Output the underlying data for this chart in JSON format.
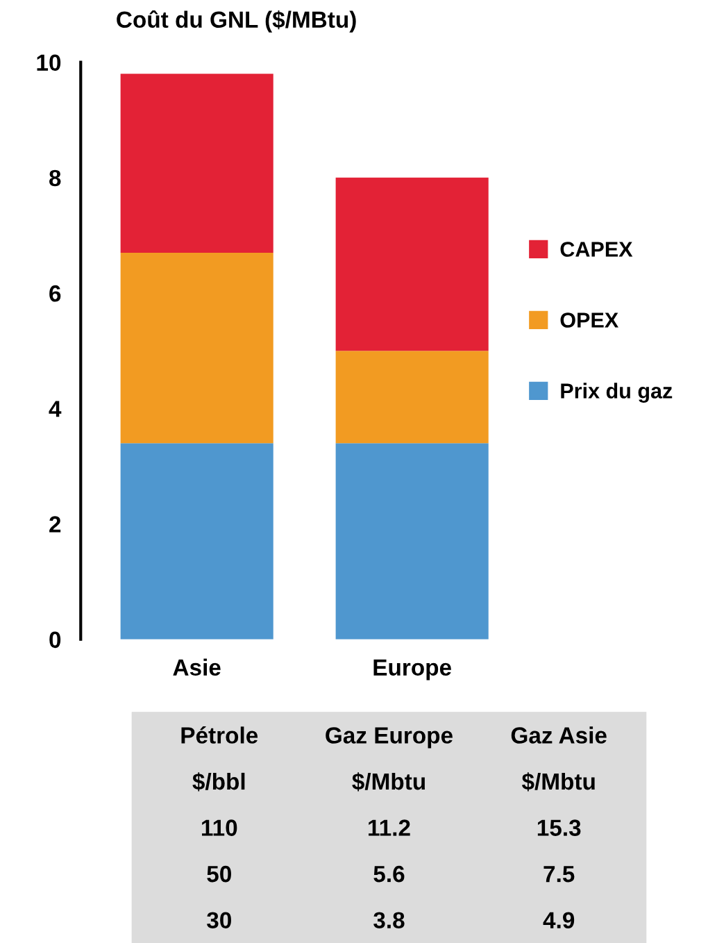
{
  "chart_data": [
    {
      "type": "bar",
      "title": "Coût du GNL ($/MBtu)",
      "categories": [
        "Asie",
        "Europe"
      ],
      "stacked": true,
      "series": [
        {
          "name": "Prix du gaz",
          "color": "#4f97cf",
          "values": [
            3.4,
            3.4
          ]
        },
        {
          "name": "OPEX",
          "color": "#f29b22",
          "values": [
            3.3,
            1.6
          ]
        },
        {
          "name": "CAPEX",
          "color": "#e32236",
          "values": [
            3.1,
            3.0
          ]
        }
      ],
      "ylim": [
        0,
        10
      ],
      "yticks": [
        0,
        2,
        4,
        6,
        8,
        10
      ],
      "grid": false,
      "legend": "right"
    },
    {
      "type": "other",
      "annotations": [
        "Pétrole",
        "Gaz Europe",
        "Gaz Asie",
        "$/bbl",
        "$/Mbtu",
        "$/Mbtu",
        "110",
        "11.2",
        "15.3",
        "50",
        "5.6",
        "7.5",
        "30",
        "3.8",
        "4.9"
      ]
    }
  ]
}
